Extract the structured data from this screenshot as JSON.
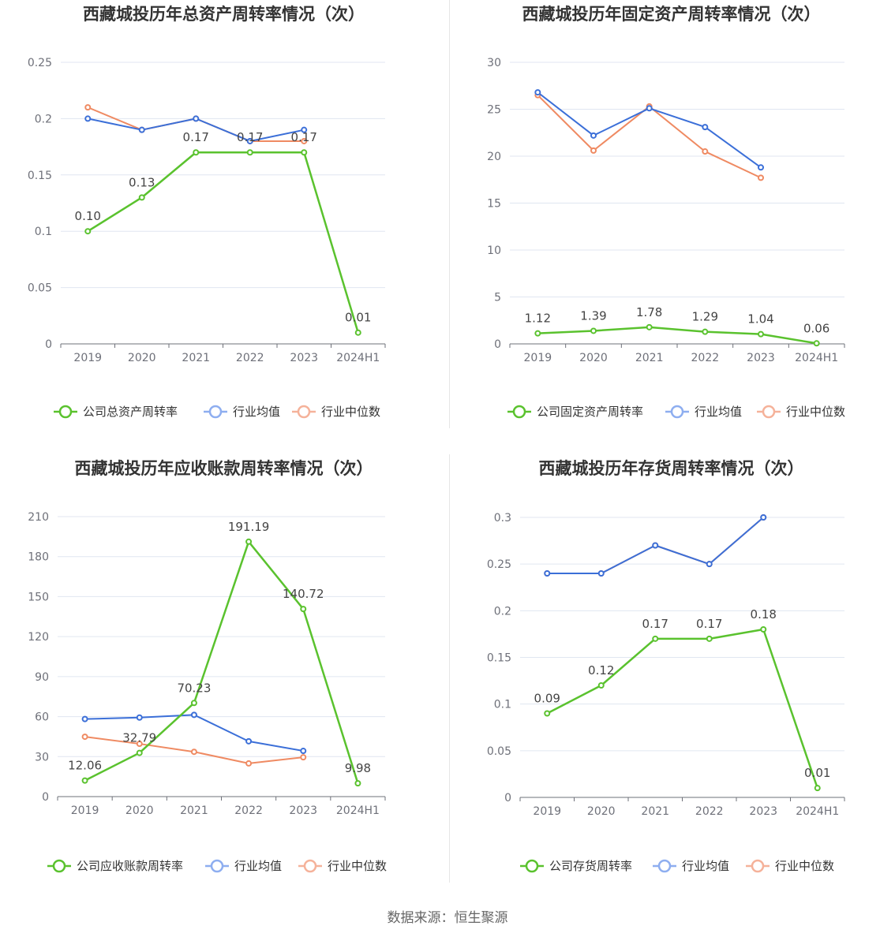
{
  "source": "数据来源：恒生聚源",
  "colors": {
    "company": "#5ac22e",
    "avg": "#3b6fd8",
    "median": "#ef8a62",
    "avg_legend": "#8eaef0",
    "median_legend": "#f5b29a"
  },
  "chart_data": [
    {
      "type": "line",
      "title": "西藏城投历年总资产周转率情况（次）",
      "categories": [
        "2019",
        "2020",
        "2021",
        "2022",
        "2023",
        "2024H1"
      ],
      "ylim": [
        0,
        0.25
      ],
      "yticks": [
        "0",
        "0.05",
        "0.1",
        "0.15",
        "0.2",
        "0.25"
      ],
      "series": [
        {
          "name": "公司总资产周转率",
          "values": [
            0.1,
            0.13,
            0.17,
            0.17,
            0.17,
            0.01
          ],
          "labels": [
            "0.10",
            "0.13",
            "0.17",
            "0.17",
            "0.17",
            "0.01"
          ]
        },
        {
          "name": "行业均值",
          "values": [
            0.2,
            0.19,
            0.2,
            0.18,
            0.19,
            null
          ]
        },
        {
          "name": "行业中位数",
          "values": [
            0.21,
            0.19,
            0.2,
            0.18,
            0.18,
            null
          ]
        }
      ],
      "legend": "bottom",
      "grid": true
    },
    {
      "type": "line",
      "title": "西藏城投历年固定资产周转率情况（次）",
      "categories": [
        "2019",
        "2020",
        "2021",
        "2022",
        "2023",
        "2024H1"
      ],
      "ylim": [
        0,
        30
      ],
      "yticks": [
        "0",
        "5",
        "10",
        "15",
        "20",
        "25",
        "30"
      ],
      "series": [
        {
          "name": "公司固定资产周转率",
          "values": [
            1.12,
            1.39,
            1.78,
            1.29,
            1.04,
            0.06
          ],
          "labels": [
            "1.12",
            "1.39",
            "1.78",
            "1.29",
            "1.04",
            "0.06"
          ]
        },
        {
          "name": "行业均值",
          "values": [
            26.8,
            22.2,
            25.1,
            23.1,
            18.8,
            null
          ]
        },
        {
          "name": "行业中位数",
          "values": [
            26.5,
            20.6,
            25.3,
            20.5,
            17.7,
            null
          ]
        }
      ],
      "legend": "bottom",
      "grid": true
    },
    {
      "type": "line",
      "title": "西藏城投历年应收账款周转率情况（次）",
      "categories": [
        "2019",
        "2020",
        "2021",
        "2022",
        "2023",
        "2024H1"
      ],
      "ylim": [
        0,
        210
      ],
      "yticks": [
        "0",
        "30",
        "60",
        "90",
        "120",
        "150",
        "180",
        "210"
      ],
      "series": [
        {
          "name": "公司应收账款周转率",
          "values": [
            12.06,
            32.79,
            70.23,
            191.19,
            140.72,
            9.98
          ],
          "labels": [
            "12.06",
            "32.79",
            "70.23",
            "191.19",
            "140.72",
            "9.98"
          ]
        },
        {
          "name": "行业均值",
          "values": [
            58.2,
            59.3,
            61.3,
            41.5,
            34.3,
            null
          ]
        },
        {
          "name": "行业中位数",
          "values": [
            44.9,
            39.6,
            33.6,
            24.9,
            29.5,
            null
          ]
        }
      ],
      "legend": "bottom",
      "grid": true
    },
    {
      "type": "line",
      "title": "西藏城投历年存货周转率情况（次）",
      "categories": [
        "2019",
        "2020",
        "2021",
        "2022",
        "2023",
        "2024H1"
      ],
      "ylim": [
        0,
        0.3
      ],
      "yticks": [
        "0",
        "0.05",
        "0.1",
        "0.15",
        "0.2",
        "0.25",
        "0.3"
      ],
      "series": [
        {
          "name": "公司存货周转率",
          "values": [
            0.09,
            0.12,
            0.17,
            0.17,
            0.18,
            0.01
          ],
          "labels": [
            "0.09",
            "0.12",
            "0.17",
            "0.17",
            "0.18",
            "0.01"
          ]
        },
        {
          "name": "行业均值",
          "values": [
            0.24,
            0.24,
            0.27,
            0.25,
            0.3,
            null
          ]
        },
        {
          "name": "行业中位数",
          "values": [
            0.24,
            0.24,
            0.27,
            0.25,
            0.3,
            null
          ]
        }
      ],
      "legend": "bottom",
      "grid": true
    }
  ]
}
